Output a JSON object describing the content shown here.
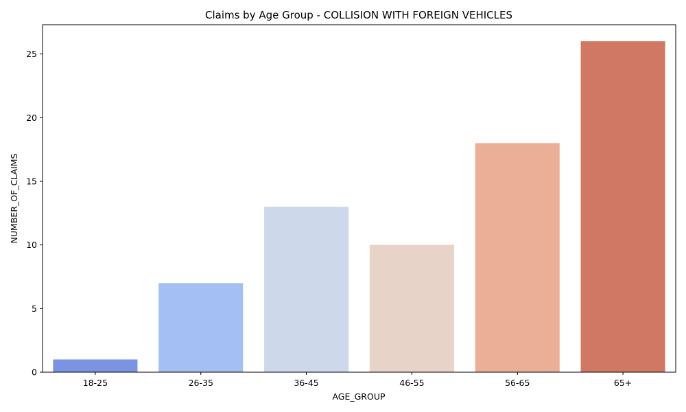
{
  "chart_data": {
    "type": "bar",
    "title": "Claims by Age Group - COLLISION WITH FOREIGN VEHICLES",
    "xlabel": "AGE_GROUP",
    "ylabel": "NUMBER_OF_CLAIMS",
    "categories": [
      "18-25",
      "26-35",
      "36-45",
      "46-55",
      "56-65",
      "65+"
    ],
    "values": [
      1,
      7,
      13,
      10,
      18,
      26
    ],
    "colors": [
      "#7b93e1",
      "#a4bff4",
      "#cdd9ea",
      "#e8d3c9",
      "#ebaf97",
      "#d17864"
    ],
    "ylim": [
      0,
      27.3
    ],
    "yticks": [
      0,
      5,
      10,
      15,
      20,
      25
    ],
    "grid": false,
    "legend": "none"
  }
}
